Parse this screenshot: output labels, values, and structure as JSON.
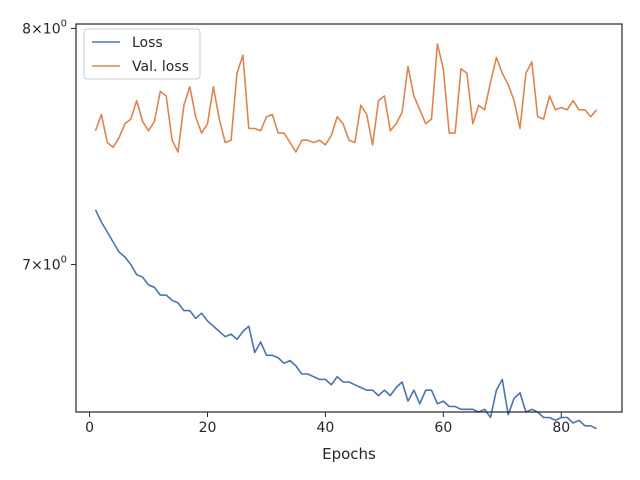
{
  "chart_data": {
    "type": "line",
    "xlabel": "Epochs",
    "ylabel": "",
    "xlim": [
      -2.3,
      90.3
    ],
    "ylim": [
      6.44,
      8.02
    ],
    "yscale": "log",
    "grid": false,
    "legend_position": "top-left",
    "x_ticks": [
      {
        "value": 0,
        "label": "0"
      },
      {
        "value": 20,
        "label": "20"
      },
      {
        "value": 40,
        "label": "40"
      },
      {
        "value": 60,
        "label": "60"
      },
      {
        "value": 80,
        "label": "80"
      }
    ],
    "y_ticks": [
      {
        "value": 7,
        "base": "7",
        "times": "×",
        "mantissa": "10",
        "exponent": "0"
      },
      {
        "value": 8,
        "base": "8",
        "times": "×",
        "mantissa": "10",
        "exponent": "0"
      }
    ],
    "x": [
      1,
      2,
      3,
      4,
      5,
      6,
      7,
      8,
      9,
      10,
      11,
      12,
      13,
      14,
      15,
      16,
      17,
      18,
      19,
      20,
      21,
      22,
      23,
      24,
      25,
      26,
      27,
      28,
      29,
      30,
      31,
      32,
      33,
      34,
      35,
      36,
      37,
      38,
      39,
      40,
      41,
      42,
      43,
      44,
      45,
      46,
      47,
      48,
      49,
      50,
      51,
      52,
      53,
      54,
      55,
      56,
      57,
      58,
      59,
      60,
      61,
      62,
      63,
      64,
      65,
      66,
      67,
      68,
      69,
      70,
      71,
      72,
      73,
      74,
      75,
      76,
      77,
      78,
      79,
      80,
      81,
      82,
      83,
      84,
      85,
      86
    ],
    "series": [
      {
        "name": "Loss",
        "color": "#4c72b0",
        "values": [
          7.22,
          7.17,
          7.13,
          7.09,
          7.05,
          7.03,
          7.0,
          6.96,
          6.95,
          6.92,
          6.91,
          6.88,
          6.88,
          6.86,
          6.85,
          6.82,
          6.82,
          6.79,
          6.81,
          6.78,
          6.76,
          6.74,
          6.72,
          6.73,
          6.71,
          6.74,
          6.76,
          6.66,
          6.7,
          6.65,
          6.65,
          6.64,
          6.62,
          6.63,
          6.61,
          6.58,
          6.58,
          6.57,
          6.56,
          6.56,
          6.54,
          6.57,
          6.55,
          6.55,
          6.54,
          6.53,
          6.52,
          6.52,
          6.5,
          6.52,
          6.5,
          6.53,
          6.55,
          6.48,
          6.52,
          6.47,
          6.52,
          6.52,
          6.47,
          6.48,
          6.46,
          6.46,
          6.45,
          6.45,
          6.45,
          6.44,
          6.45,
          6.42,
          6.52,
          6.56,
          6.43,
          6.49,
          6.51,
          6.44,
          6.45,
          6.44,
          6.42,
          6.42,
          6.41,
          6.42,
          6.42,
          6.4,
          6.41,
          6.39,
          6.39,
          6.38
        ]
      },
      {
        "name": "Val. loss",
        "color": "#dd8452",
        "values": [
          7.55,
          7.62,
          7.5,
          7.48,
          7.52,
          7.58,
          7.6,
          7.68,
          7.59,
          7.55,
          7.59,
          7.72,
          7.7,
          7.51,
          7.46,
          7.66,
          7.74,
          7.61,
          7.54,
          7.58,
          7.74,
          7.6,
          7.5,
          7.51,
          7.8,
          7.88,
          7.56,
          7.56,
          7.55,
          7.61,
          7.62,
          7.54,
          7.54,
          7.5,
          7.46,
          7.51,
          7.51,
          7.5,
          7.51,
          7.49,
          7.53,
          7.61,
          7.58,
          7.51,
          7.5,
          7.66,
          7.62,
          7.49,
          7.68,
          7.7,
          7.55,
          7.58,
          7.63,
          7.83,
          7.7,
          7.64,
          7.58,
          7.6,
          7.93,
          7.82,
          7.54,
          7.54,
          7.82,
          7.8,
          7.58,
          7.66,
          7.64,
          7.76,
          7.87,
          7.8,
          7.75,
          7.68,
          7.56,
          7.8,
          7.85,
          7.61,
          7.6,
          7.7,
          7.64,
          7.65,
          7.64,
          7.68,
          7.64,
          7.64,
          7.61,
          7.64
        ]
      }
    ]
  }
}
